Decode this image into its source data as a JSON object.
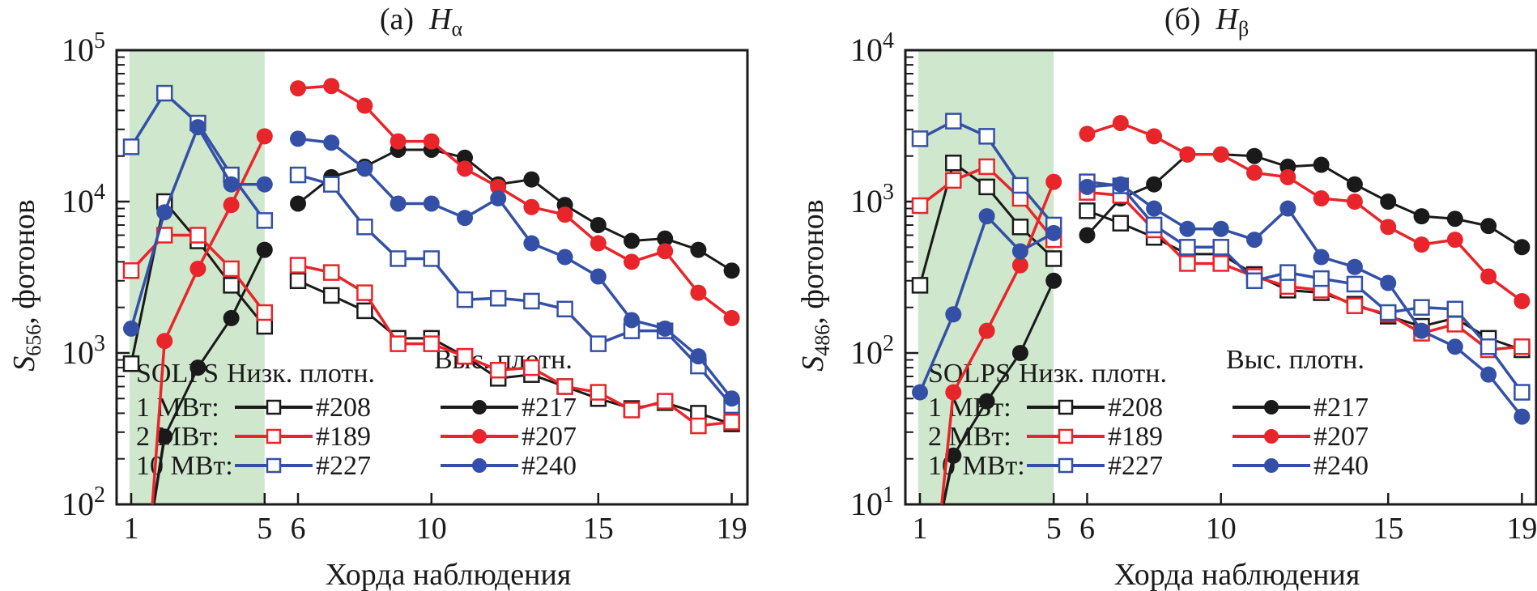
{
  "chart_data": [
    {
      "type": "line",
      "panel_label": "(a)",
      "title_symbol": "H",
      "title_subscript": "α",
      "ylabel_symbol": "S",
      "ylabel_subscript": "656",
      "ylabel_suffix": ", фотонов",
      "xlabel": "Хорда наблюдения",
      "yscale": "log",
      "ylim": [
        100,
        100000
      ],
      "ytick_exponents": [
        2,
        3,
        4,
        5
      ],
      "ytick_base": "10",
      "xlim": [
        0.55,
        19.45
      ],
      "xticks": [
        1,
        5,
        6,
        10,
        15,
        19
      ],
      "shaded_region": {
        "x_from": 0.95,
        "x_to": 5.0,
        "color": "#cfe7cc"
      },
      "legend_position": "bottom-right",
      "series": [
        {
          "name": "#208",
          "group": "Низк. плотн.",
          "power": "1 МВт",
          "color": "#1a1a1a",
          "marker": "open-square",
          "x": [
            1,
            2,
            3,
            4,
            5,
            6,
            7,
            8,
            9,
            10,
            11,
            12,
            13,
            14,
            15,
            16,
            17,
            18,
            19
          ],
          "y": [
            850,
            10000,
            5500,
            2800,
            1500,
            3000,
            2400,
            1900,
            1250,
            1250,
            950,
            680,
            720,
            600,
            500,
            430,
            470,
            400,
            340
          ]
        },
        {
          "name": "#217",
          "group": "Выс. плотн.",
          "power": "1 МВт",
          "color": "#1a1a1a",
          "marker": "filled-circle",
          "x": [
            2,
            3,
            4,
            5,
            6,
            7,
            8,
            9,
            10,
            11,
            12,
            13,
            14,
            15,
            16,
            17,
            18,
            19
          ],
          "y": [
            280,
            800,
            1700,
            4800,
            9700,
            14500,
            17000,
            22000,
            22000,
            19500,
            13000,
            14000,
            9500,
            7000,
            5500,
            5700,
            4800,
            3500
          ]
        },
        {
          "name": "#189",
          "group": "Низк. плотн.",
          "power": "2 МВт",
          "color": "#e8252a",
          "marker": "open-square",
          "x": [
            1,
            2,
            3,
            4,
            5,
            6,
            7,
            8,
            9,
            10,
            11,
            12,
            13,
            14,
            15,
            16,
            17,
            18,
            19
          ],
          "y": [
            3500,
            6000,
            6000,
            3600,
            1850,
            3800,
            3400,
            2500,
            1150,
            1150,
            950,
            770,
            800,
            600,
            550,
            420,
            480,
            330,
            350
          ]
        },
        {
          "name": "#207",
          "group": "Выс. плотн.",
          "power": "2 МВт",
          "color": "#e8252a",
          "marker": "filled-circle",
          "x": [
            2,
            3,
            4,
            5,
            6,
            7,
            8,
            9,
            10,
            11,
            12,
            13,
            14,
            15,
            16,
            17,
            18,
            19
          ],
          "y": [
            1200,
            3600,
            9500,
            27000,
            56000,
            58000,
            43000,
            25000,
            25000,
            16500,
            12500,
            9200,
            8200,
            5300,
            4000,
            4700,
            2500,
            1700
          ]
        },
        {
          "name": "#227",
          "group": "Низк. плотн.",
          "power": "10 МВт",
          "color": "#3450a6",
          "marker": "open-square",
          "x": [
            1,
            2,
            3,
            4,
            5,
            6,
            7,
            8,
            9,
            10,
            11,
            12,
            13,
            14,
            15,
            16,
            17,
            18,
            19
          ],
          "y": [
            23000,
            52000,
            33000,
            15000,
            7500,
            15000,
            13000,
            6800,
            4200,
            4200,
            2250,
            2300,
            2200,
            1950,
            1150,
            1400,
            1400,
            820,
            450
          ]
        },
        {
          "name": "#240",
          "group": "Выс. плотн.",
          "power": "10 МВт",
          "color": "#3450a6",
          "marker": "filled-circle",
          "x": [
            1,
            2,
            3,
            4,
            5,
            6,
            7,
            8,
            9,
            10,
            11,
            12,
            13,
            14,
            15,
            16,
            17,
            18,
            19
          ],
          "y": [
            1450,
            8500,
            31000,
            13000,
            13000,
            26000,
            24500,
            16500,
            9700,
            9700,
            7800,
            10500,
            5300,
            4300,
            3200,
            1650,
            1450,
            950,
            500
          ]
        }
      ],
      "legend": {
        "header_col1": "SOLPS",
        "header_col2": "Низк. плотн.",
        "header_col3": "Выс. плотн.",
        "rows": [
          {
            "label": "1 МВт:",
            "low": "#208",
            "high": "#217",
            "color": "#1a1a1a"
          },
          {
            "label": "2 МВт:",
            "low": "#189",
            "high": "#207",
            "color": "#e8252a"
          },
          {
            "label": "10 МВт:",
            "low": "#227",
            "high": "#240",
            "color": "#3450a6"
          }
        ]
      }
    },
    {
      "type": "line",
      "panel_label": "(б)",
      "title_symbol": "H",
      "title_subscript": "β",
      "ylabel_symbol": "S",
      "ylabel_subscript": "486",
      "ylabel_suffix": ", фотонов",
      "xlabel": "Хорда наблюдения",
      "yscale": "log",
      "ylim": [
        10,
        10000
      ],
      "ytick_exponents": [
        1,
        2,
        3,
        4
      ],
      "ytick_base": "10",
      "xlim": [
        0.55,
        19.45
      ],
      "xticks": [
        1,
        5,
        6,
        10,
        15,
        19
      ],
      "shaded_region": {
        "x_from": 0.95,
        "x_to": 5.0,
        "color": "#cfe7cc"
      },
      "legend_position": "bottom-right",
      "series": [
        {
          "name": "#208",
          "group": "Низк. плотн.",
          "power": "1 МВт",
          "color": "#1a1a1a",
          "marker": "open-square",
          "x": [
            1,
            2,
            3,
            4,
            5,
            6,
            7,
            8,
            9,
            10,
            11,
            12,
            13,
            14,
            15,
            16,
            17,
            18,
            19
          ],
          "y": [
            280,
            1800,
            1250,
            680,
            420,
            870,
            720,
            580,
            450,
            450,
            330,
            260,
            250,
            210,
            175,
            150,
            170,
            125,
            105
          ]
        },
        {
          "name": "#217",
          "group": "Выс. плотн.",
          "power": "1 МВт",
          "color": "#1a1a1a",
          "marker": "filled-circle",
          "x": [
            2,
            3,
            4,
            5,
            6,
            7,
            8,
            9,
            10,
            11,
            12,
            13,
            14,
            15,
            16,
            17,
            18,
            19
          ],
          "y": [
            21,
            48,
            100,
            300,
            600,
            1050,
            1300,
            2050,
            2050,
            2000,
            1700,
            1750,
            1300,
            1000,
            800,
            770,
            690,
            500
          ]
        },
        {
          "name": "#189",
          "group": "Низк. плотн.",
          "power": "2 МВт",
          "color": "#e8252a",
          "marker": "open-square",
          "x": [
            1,
            2,
            3,
            4,
            5,
            6,
            7,
            8,
            9,
            10,
            11,
            12,
            13,
            14,
            15,
            16,
            17,
            18,
            19
          ],
          "y": [
            940,
            1380,
            1700,
            1050,
            560,
            1150,
            1100,
            650,
            390,
            390,
            320,
            275,
            260,
            205,
            180,
            135,
            155,
            105,
            110
          ]
        },
        {
          "name": "#207",
          "group": "Выс. плотн.",
          "power": "2 МВт",
          "color": "#e8252a",
          "marker": "filled-circle",
          "x": [
            2,
            3,
            4,
            5,
            6,
            7,
            8,
            9,
            10,
            11,
            12,
            13,
            14,
            15,
            16,
            17,
            18,
            19
          ],
          "y": [
            55,
            140,
            380,
            1350,
            2800,
            3300,
            2700,
            2050,
            2050,
            1550,
            1450,
            1050,
            1000,
            680,
            520,
            560,
            320,
            220
          ]
        },
        {
          "name": "#227",
          "group": "Низк. плотн.",
          "power": "10 МВт",
          "color": "#3450a6",
          "marker": "open-square",
          "x": [
            1,
            2,
            3,
            4,
            5,
            6,
            7,
            8,
            9,
            10,
            11,
            12,
            13,
            14,
            15,
            16,
            17,
            18,
            19
          ],
          "y": [
            2600,
            3400,
            2700,
            1280,
            700,
            1350,
            1270,
            700,
            500,
            500,
            300,
            340,
            310,
            285,
            185,
            200,
            195,
            110,
            55
          ]
        },
        {
          "name": "#240",
          "group": "Выс. плотн.",
          "power": "10 МВт",
          "color": "#3450a6",
          "marker": "filled-circle",
          "x": [
            1,
            2,
            3,
            4,
            5,
            6,
            7,
            8,
            9,
            10,
            11,
            12,
            13,
            14,
            15,
            16,
            17,
            18,
            19
          ],
          "y": [
            55,
            180,
            800,
            470,
            620,
            1250,
            1300,
            900,
            660,
            660,
            560,
            900,
            430,
            370,
            290,
            140,
            110,
            72,
            38
          ]
        }
      ],
      "legend": {
        "header_col1": "SOLPS",
        "header_col2": "Низк. плотн.",
        "header_col3": "Выс. плотн.",
        "rows": [
          {
            "label": "1 МВт:",
            "low": "#208",
            "high": "#217",
            "color": "#1a1a1a"
          },
          {
            "label": "2 МВт:",
            "low": "#189",
            "high": "#207",
            "color": "#e8252a"
          },
          {
            "label": "10 МВт:",
            "low": "#227",
            "high": "#240",
            "color": "#3450a6"
          }
        ]
      }
    }
  ]
}
